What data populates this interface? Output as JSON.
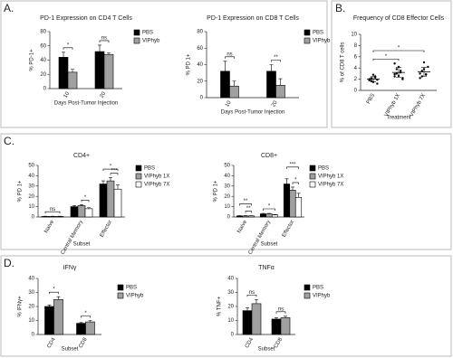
{
  "panel_labels": [
    "A.",
    "B.",
    "C.",
    "D."
  ],
  "chart_data": [
    {
      "type": "bar",
      "title": "PD-1 Expression on CD4 T Cells",
      "ylabel": "% PD-1+",
      "xlabel": "Days Post-Tumor Injection",
      "categories": [
        "10",
        "20"
      ],
      "ylim": [
        0,
        80
      ],
      "yticks": [
        0,
        20,
        40,
        60,
        80
      ],
      "series": [
        {
          "name": "PBS",
          "color": "#000000",
          "values": [
            44,
            52
          ],
          "errors": [
            7,
            9
          ]
        },
        {
          "name": "VIPhyb",
          "color": "#a0a0a0",
          "values": [
            23,
            48
          ],
          "errors": [
            4,
            2
          ]
        }
      ],
      "annotations": [
        "*",
        "ns"
      ]
    },
    {
      "type": "bar",
      "title": "PD-1 Expression on CD8 T Cells",
      "ylabel": "% PD 1+",
      "xlabel": "Days Post-Tumor Injection",
      "categories": [
        "10",
        "20"
      ],
      "ylim": [
        0,
        80
      ],
      "yticks": [
        0,
        20,
        40,
        60,
        80
      ],
      "series": [
        {
          "name": "PBS",
          "color": "#000000",
          "values": [
            32,
            32
          ],
          "errors": [
            12,
            8
          ]
        },
        {
          "name": "VIPhyb",
          "color": "#a0a0a0",
          "values": [
            14,
            15
          ],
          "errors": [
            6,
            8
          ]
        }
      ],
      "annotations": [
        "ns",
        "**"
      ]
    },
    {
      "type": "dot",
      "title": "Frequency of CD8 Effector Cells",
      "ylabel": "% of CD8 T cells",
      "xlabel": "Treatment",
      "categories": [
        "PBS",
        "VIPhyb 1X",
        "VIPhyb 7X"
      ],
      "ylim": [
        0,
        10
      ],
      "yticks": [
        0,
        2,
        4,
        6,
        8,
        10
      ],
      "color": "#000000",
      "points": [
        [
          1.8,
          2.2,
          1.5,
          2.5,
          1.2,
          2.0,
          1.7,
          2.8,
          2.3,
          1.9
        ],
        [
          2.5,
          3.0,
          4.2,
          3.5,
          2.0,
          4.8,
          3.8,
          2.6,
          3.2,
          2.2,
          2.9
        ],
        [
          2.2,
          3.5,
          5.0,
          2.8,
          4.2,
          3.0,
          2.5,
          3.8,
          2.9
        ]
      ],
      "means": [
        2.0,
        3.2,
        3.3
      ],
      "errors": [
        0.5,
        0.9,
        0.8
      ],
      "annotations": [
        "*",
        "*"
      ]
    },
    {
      "type": "bar",
      "title": "CD4+",
      "ylabel": "% PD 1+",
      "xlabel": "Subset",
      "categories": [
        "Naive",
        "Central Memory",
        "Effector"
      ],
      "ylim": [
        0,
        50
      ],
      "yticks": [
        0,
        10,
        20,
        30,
        40,
        50
      ],
      "series": [
        {
          "name": "PBS",
          "color": "#000000",
          "values": [
            0.5,
            10,
            32
          ],
          "errors": [
            0.2,
            1,
            3
          ]
        },
        {
          "name": "VIPhyb 1X",
          "color": "#a0a0a0",
          "values": [
            0.5,
            11,
            35
          ],
          "errors": [
            0.2,
            1,
            3
          ]
        },
        {
          "name": "VIPhyb 7X",
          "color": "#ffffff",
          "values": [
            0.5,
            8,
            27
          ],
          "errors": [
            0.2,
            1,
            4
          ]
        }
      ],
      "annotations": [
        "ns",
        "*",
        "*",
        "***"
      ]
    },
    {
      "type": "bar",
      "title": "CD8+",
      "ylabel": "% PD 1+",
      "xlabel": "Subset",
      "categories": [
        "Naive",
        "Central Memory",
        "Effector"
      ],
      "ylim": [
        0,
        50
      ],
      "yticks": [
        0,
        10,
        20,
        30,
        40,
        50
      ],
      "series": [
        {
          "name": "PBS",
          "color": "#000000",
          "values": [
            1,
            3,
            32
          ],
          "errors": [
            0.3,
            0.5,
            5
          ]
        },
        {
          "name": "VIPhyb 1X",
          "color": "#a0a0a0",
          "values": [
            1,
            3,
            26
          ],
          "errors": [
            0.3,
            0.5,
            3
          ]
        },
        {
          "name": "VIPhyb 7X",
          "color": "#ffffff",
          "values": [
            1,
            2,
            19
          ],
          "errors": [
            0.3,
            0.4,
            4
          ]
        }
      ],
      "annotations": [
        "**",
        "**",
        "*",
        "***",
        "*"
      ]
    },
    {
      "type": "bar",
      "title": "IFNγ",
      "ylabel": "% IFNγ+",
      "xlabel": "Subset",
      "categories": [
        "CD4",
        "CD8"
      ],
      "ylim": [
        0,
        40
      ],
      "yticks": [
        0,
        10,
        20,
        30,
        40
      ],
      "series": [
        {
          "name": "PBS",
          "color": "#000000",
          "values": [
            20,
            8
          ],
          "errors": [
            1,
            0.5
          ]
        },
        {
          "name": "VIPhyb",
          "color": "#a0a0a0",
          "values": [
            25,
            9
          ],
          "errors": [
            2,
            1
          ]
        }
      ],
      "annotations": [
        "*",
        "*"
      ]
    },
    {
      "type": "bar",
      "title": "TNFα",
      "ylabel": "% TNF+",
      "xlabel": "Subset",
      "categories": [
        "CD4",
        "CD8"
      ],
      "ylim": [
        0,
        40
      ],
      "yticks": [
        0,
        10,
        20,
        30,
        40
      ],
      "series": [
        {
          "name": "PBS",
          "color": "#000000",
          "values": [
            17,
            11
          ],
          "errors": [
            2,
            1
          ]
        },
        {
          "name": "VIPhyb",
          "color": "#a0a0a0",
          "values": [
            22,
            12
          ],
          "errors": [
            3,
            1
          ]
        }
      ],
      "annotations": [
        "ns",
        "ns"
      ]
    }
  ]
}
